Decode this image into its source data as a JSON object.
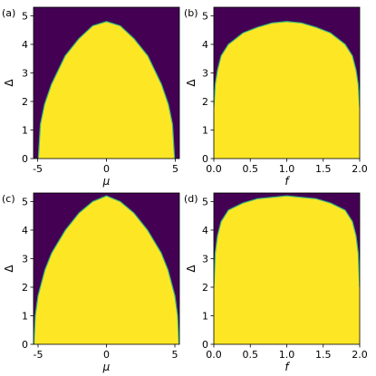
{
  "chart_data": [
    {
      "type": "area",
      "label": "(a)",
      "xlabel": "μ",
      "ylabel": "Δ",
      "x": [
        -4.95,
        -4.8,
        -4.5,
        -4,
        -3,
        -2,
        -1,
        0,
        1,
        2,
        3,
        4,
        4.5,
        4.8,
        4.95
      ],
      "values": [
        0,
        1.2,
        1.9,
        2.6,
        3.6,
        4.2,
        4.65,
        4.8,
        4.65,
        4.2,
        3.6,
        2.6,
        1.9,
        1.2,
        0
      ],
      "xlim": [
        -5.3,
        5.3
      ],
      "ylim": [
        0,
        5.3
      ],
      "xticks": [
        -5,
        0,
        5
      ],
      "yticks": [
        0,
        1,
        2,
        3,
        4,
        5
      ],
      "color": "#fde725",
      "background": "#440154",
      "edge_color": "#35b779"
    },
    {
      "type": "area",
      "label": "(b)",
      "xlabel": "f",
      "ylabel": "Δ",
      "x": [
        0,
        0.02,
        0.05,
        0.1,
        0.2,
        0.4,
        0.6,
        0.8,
        1.0,
        1.2,
        1.4,
        1.6,
        1.8,
        1.9,
        1.95,
        1.98,
        2.0
      ],
      "values": [
        1.8,
        2.6,
        3.1,
        3.6,
        4.0,
        4.4,
        4.6,
        4.75,
        4.8,
        4.75,
        4.6,
        4.4,
        4.0,
        3.6,
        3.1,
        2.6,
        1.8
      ],
      "xlim": [
        0,
        2
      ],
      "ylim": [
        0,
        5.3
      ],
      "xticks": [
        {
          "value": 0,
          "label": "0.0"
        },
        {
          "value": 0.5,
          "label": "0.5"
        },
        {
          "value": 1,
          "label": "1.0"
        },
        {
          "value": 1.5,
          "label": "1.5"
        },
        {
          "value": 2,
          "label": "2.0"
        }
      ],
      "yticks": [
        0,
        1,
        2,
        3,
        4,
        5
      ],
      "color": "#fde725",
      "background": "#440154",
      "edge_color": "#35b779"
    },
    {
      "type": "area",
      "label": "(c)",
      "xlabel": "μ",
      "ylabel": "Δ",
      "x": [
        -5.3,
        -5.2,
        -5,
        -4.5,
        -4,
        -3,
        -2,
        -1,
        0,
        1,
        2,
        3,
        4,
        4.5,
        5,
        5.2,
        5.3
      ],
      "values": [
        0,
        1.0,
        1.7,
        2.6,
        3.2,
        4.0,
        4.6,
        5.0,
        5.2,
        5.0,
        4.6,
        4.0,
        3.2,
        2.6,
        1.7,
        1.0,
        0
      ],
      "xlim": [
        -5.33,
        5.33
      ],
      "ylim": [
        0,
        5.3
      ],
      "xticks": [
        -5,
        0,
        5
      ],
      "yticks": [
        0,
        1,
        2,
        3,
        4,
        5
      ],
      "color": "#fde725",
      "background": "#440154",
      "edge_color": "#35b779"
    },
    {
      "type": "area",
      "label": "(d)",
      "xlabel": "f",
      "ylabel": "Δ",
      "x": [
        0,
        0.02,
        0.05,
        0.1,
        0.2,
        0.4,
        0.6,
        0.8,
        1.0,
        1.2,
        1.4,
        1.6,
        1.8,
        1.9,
        1.95,
        1.98,
        2.0
      ],
      "values": [
        2.0,
        3.2,
        3.8,
        4.3,
        4.7,
        4.95,
        5.1,
        5.15,
        5.2,
        5.15,
        5.1,
        4.95,
        4.7,
        4.3,
        3.8,
        3.2,
        2.0
      ],
      "xlim": [
        0,
        2
      ],
      "ylim": [
        0,
        5.3
      ],
      "xticks": [
        {
          "value": 0,
          "label": "0.0"
        },
        {
          "value": 0.5,
          "label": "0.5"
        },
        {
          "value": 1,
          "label": "1.0"
        },
        {
          "value": 1.5,
          "label": "1.5"
        },
        {
          "value": 2,
          "label": "2.0"
        }
      ],
      "yticks": [
        0,
        1,
        2,
        3,
        4,
        5
      ],
      "color": "#fde725",
      "background": "#440154",
      "edge_color": "#35b779"
    }
  ]
}
